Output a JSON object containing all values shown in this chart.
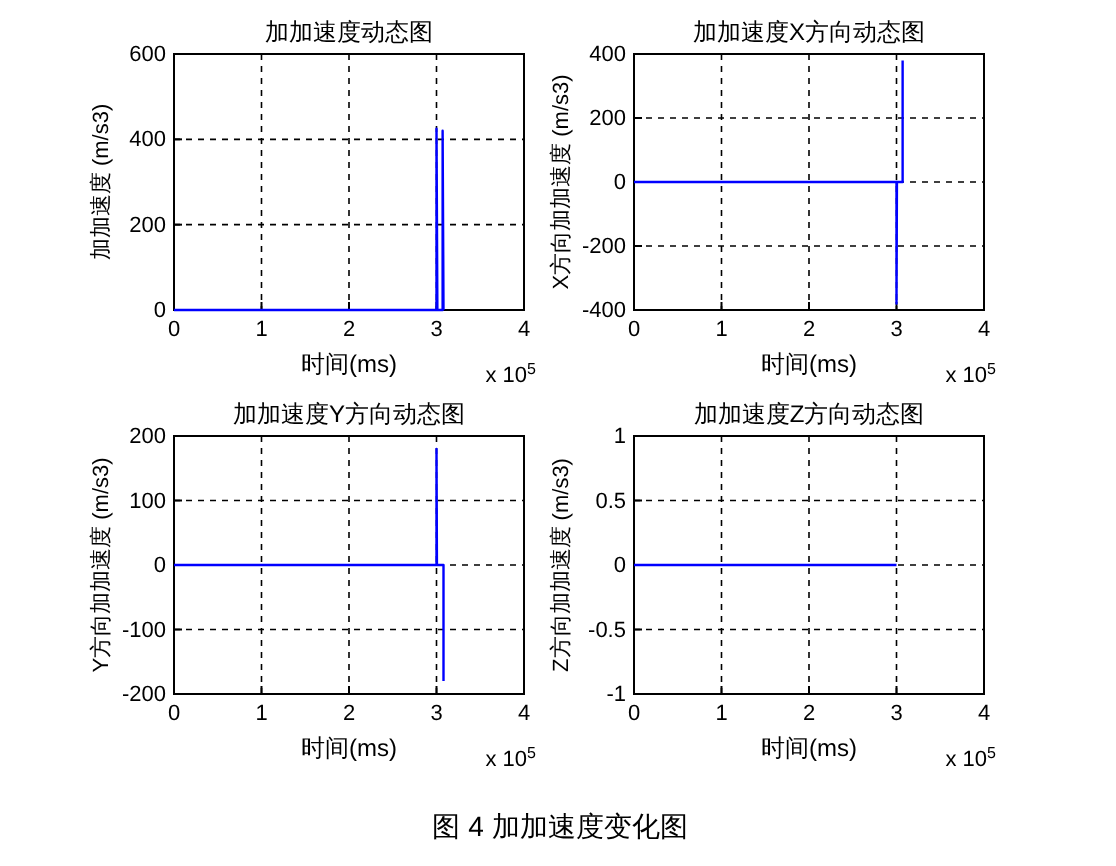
{
  "chart_data": [
    {
      "type": "line",
      "title": "加加速度动态图",
      "xlabel": "时间(ms)",
      "ylabel": "加加速度 (m/s3)",
      "annotations": [
        "x 10$^{5}$"
      ],
      "x": [
        0,
        3.0,
        3.0,
        3.01,
        3.07,
        3.07,
        3.08
      ],
      "series": [
        {
          "color": "#0000ff",
          "values": [
            0,
            0,
            425,
            0,
            0,
            420,
            0
          ]
        }
      ],
      "xlim": [
        0,
        4
      ],
      "xticks": [
        0,
        1,
        2,
        3,
        4
      ],
      "ylim": [
        0,
        600
      ],
      "yticks": [
        0,
        200,
        400,
        600
      ],
      "grid": true,
      "marker": "none",
      "line_style": "solid"
    },
    {
      "type": "line",
      "title": "加加速度X方向动态图",
      "xlabel": "时间(ms)",
      "ylabel": "X方向加加速度 (m/s3)",
      "annotations": [
        "x 10$^{5}$"
      ],
      "x": [
        0,
        3.0,
        3.0,
        3.005,
        3.07,
        3.07
      ],
      "series": [
        {
          "color": "#0000ff",
          "values": [
            0,
            0,
            -380,
            0,
            0,
            380
          ]
        }
      ],
      "xlim": [
        0,
        4
      ],
      "xticks": [
        0,
        1,
        2,
        3,
        4
      ],
      "ylim": [
        -400,
        400
      ],
      "yticks": [
        -400,
        -200,
        0,
        200,
        400
      ],
      "grid": true,
      "marker": "none",
      "line_style": "solid"
    },
    {
      "type": "line",
      "title": "加加速度Y方向动态图",
      "xlabel": "时间(ms)",
      "ylabel": "Y方向加加速度 (m/s3)",
      "annotations": [
        "x 10$^{5}$"
      ],
      "x": [
        0,
        3.0,
        3.0,
        3.005,
        3.08,
        3.08
      ],
      "series": [
        {
          "color": "#0000ff",
          "values": [
            0,
            0,
            180,
            0,
            0,
            -180
          ]
        }
      ],
      "xlim": [
        0,
        4
      ],
      "xticks": [
        0,
        1,
        2,
        3,
        4
      ],
      "ylim": [
        -200,
        200
      ],
      "yticks": [
        -200,
        -100,
        0,
        100,
        200
      ],
      "grid": true,
      "marker": "none",
      "line_style": "solid"
    },
    {
      "type": "line",
      "title": "加加速度Z方向动态图",
      "xlabel": "时间(ms)",
      "ylabel": "Z方向加加速度 (m/s3)",
      "annotations": [
        "x 10$^{5}$",
        "图 4  加加速度变化图"
      ],
      "x": [
        0,
        3.0
      ],
      "series": [
        {
          "color": "#0000ff",
          "values": [
            0,
            0
          ]
        }
      ],
      "xlim": [
        0,
        4
      ],
      "xticks": [
        0,
        1,
        2,
        3,
        4
      ],
      "ylim": [
        -1,
        1
      ],
      "yticks": [
        -1,
        -0.5,
        0,
        0.5,
        1
      ],
      "grid": true,
      "marker": "none",
      "line_style": "solid"
    }
  ]
}
